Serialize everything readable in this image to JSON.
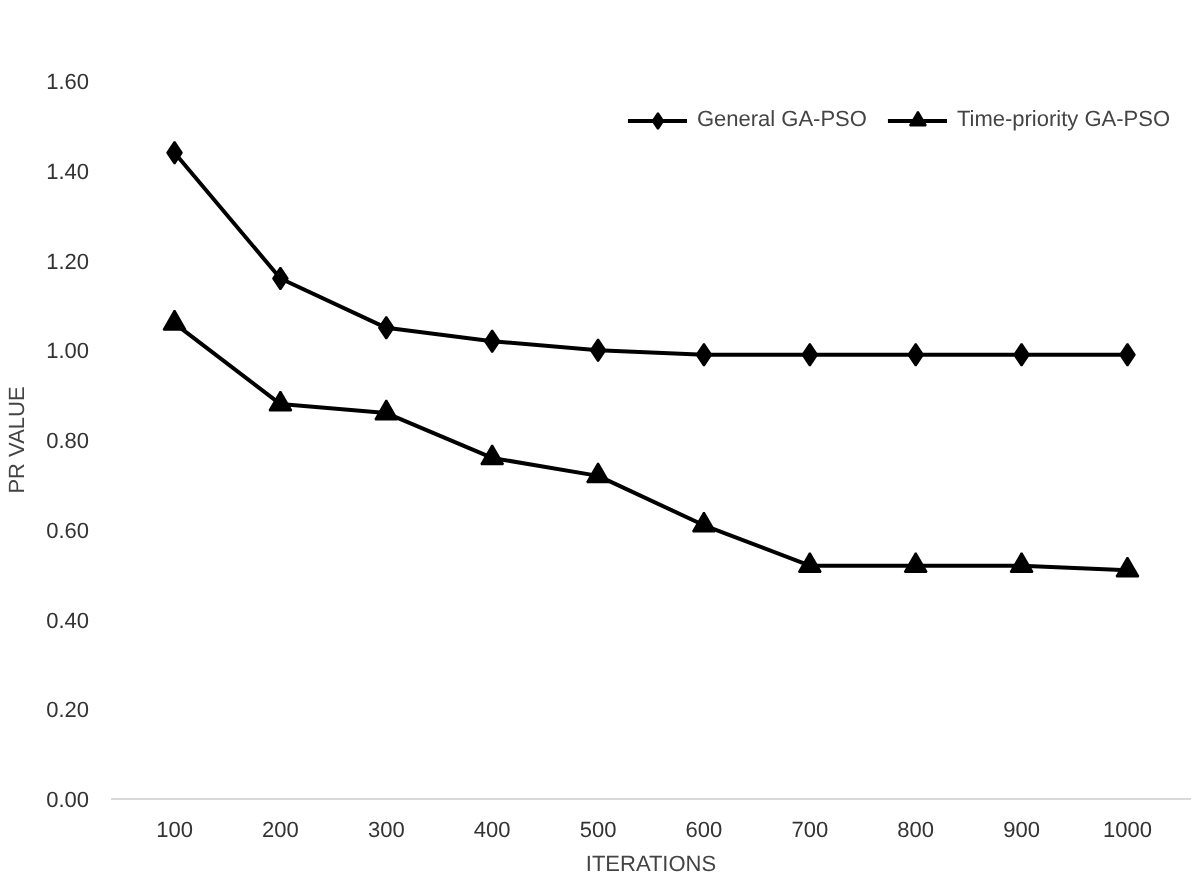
{
  "chart_data": {
    "type": "line",
    "xlabel": "ITERATIONS",
    "ylabel": "PR VALUE",
    "categories": [
      "100",
      "200",
      "300",
      "400",
      "500",
      "600",
      "700",
      "800",
      "900",
      "1000"
    ],
    "series": [
      {
        "name": "General GA-PSO",
        "color": "#000000",
        "marker": "diamond",
        "values": [
          1.44,
          1.16,
          1.05,
          1.02,
          1.0,
          0.99,
          0.99,
          0.99,
          0.99,
          0.99
        ]
      },
      {
        "name": "Time-priority GA-PSO",
        "color": "#000000",
        "marker": "triangle",
        "values": [
          1.06,
          0.88,
          0.86,
          0.76,
          0.72,
          0.61,
          0.52,
          0.52,
          0.52,
          0.51
        ]
      }
    ],
    "ylim": [
      0,
      1.6
    ],
    "yticks": [
      {
        "value": 0,
        "label": "0.00"
      },
      {
        "value": 0.2,
        "label": "0.20"
      },
      {
        "value": 0.4,
        "label": "0.40"
      },
      {
        "value": 0.6,
        "label": "0.60"
      },
      {
        "value": 0.8,
        "label": "0.80"
      },
      {
        "value": 1.0,
        "label": "1.00"
      },
      {
        "value": 1.2,
        "label": "1.20"
      },
      {
        "value": 1.4,
        "label": "1.40"
      },
      {
        "value": 1.6,
        "label": "1.60"
      }
    ],
    "grid": false,
    "legend": "top right",
    "line_style": "solid"
  }
}
